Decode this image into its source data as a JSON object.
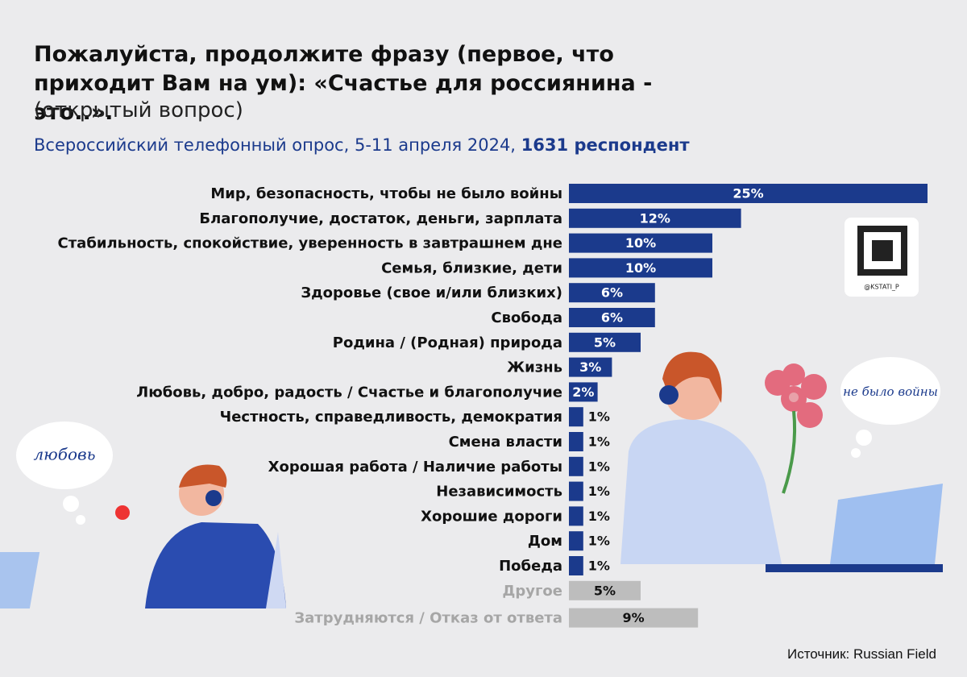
{
  "chart_data": {
    "type": "bar",
    "orientation": "horizontal",
    "title": "Пожалуйста, продолжите фразу (первое, что приходит Вам на ум): «Счастье для россиянина - это..».",
    "subtitle": "(открытый вопрос)",
    "survey": "Всероссийский телефонный опрос, 5-11 апреля 2024,",
    "respondents": "1631 респондент",
    "source": "Источник: Russian Field",
    "annotations": [
      "любовь",
      "не было войны",
      "@KSTATI_P"
    ],
    "color": "#1b3a8c",
    "categories": [
      "Мир, безопасность, чтобы не было войны",
      "Благополучие, достаток, деньги, зарплата",
      "Стабильность, спокойствие, уверенность в завтрашнем дне",
      "Семья, близкие, дети",
      "Здоровье (свое и/или близких)",
      "Свобода",
      "Родина / (Родная) природа",
      "Жизнь",
      "Любовь, добро, радость / Счастье и благополучие",
      "Честность, справедливость, демократия",
      "Смена власти",
      "Хорошая работа / Наличие работы",
      "Независимость",
      "Хорошие дороги",
      "Дом",
      "Победа",
      "Другое",
      "Затрудняются / Отказ от ответа"
    ],
    "values": [
      25,
      12,
      10,
      10,
      6,
      6,
      5,
      3,
      2,
      1,
      1,
      1,
      1,
      1,
      1,
      1,
      5,
      9
    ],
    "value_labels": [
      "25%",
      "12%",
      "10%",
      "10%",
      "6%",
      "6%",
      "5%",
      "3%",
      "2%",
      "1%",
      "1%",
      "1%",
      "1%",
      "1%",
      "1%",
      "1%",
      "5%",
      "9%"
    ],
    "colors": [
      "#1b3a8c",
      "#1b3a8c",
      "#1b3a8c",
      "#1b3a8c",
      "#1b3a8c",
      "#1b3a8c",
      "#1b3a8c",
      "#1b3a8c",
      "#1b3a8c",
      "#1b3a8c",
      "#1b3a8c",
      "#1b3a8c",
      "#1b3a8c",
      "#1b3a8c",
      "#1b3a8c",
      "#1b3a8c",
      "#bdbdbd",
      "#bdbdbd"
    ]
  }
}
